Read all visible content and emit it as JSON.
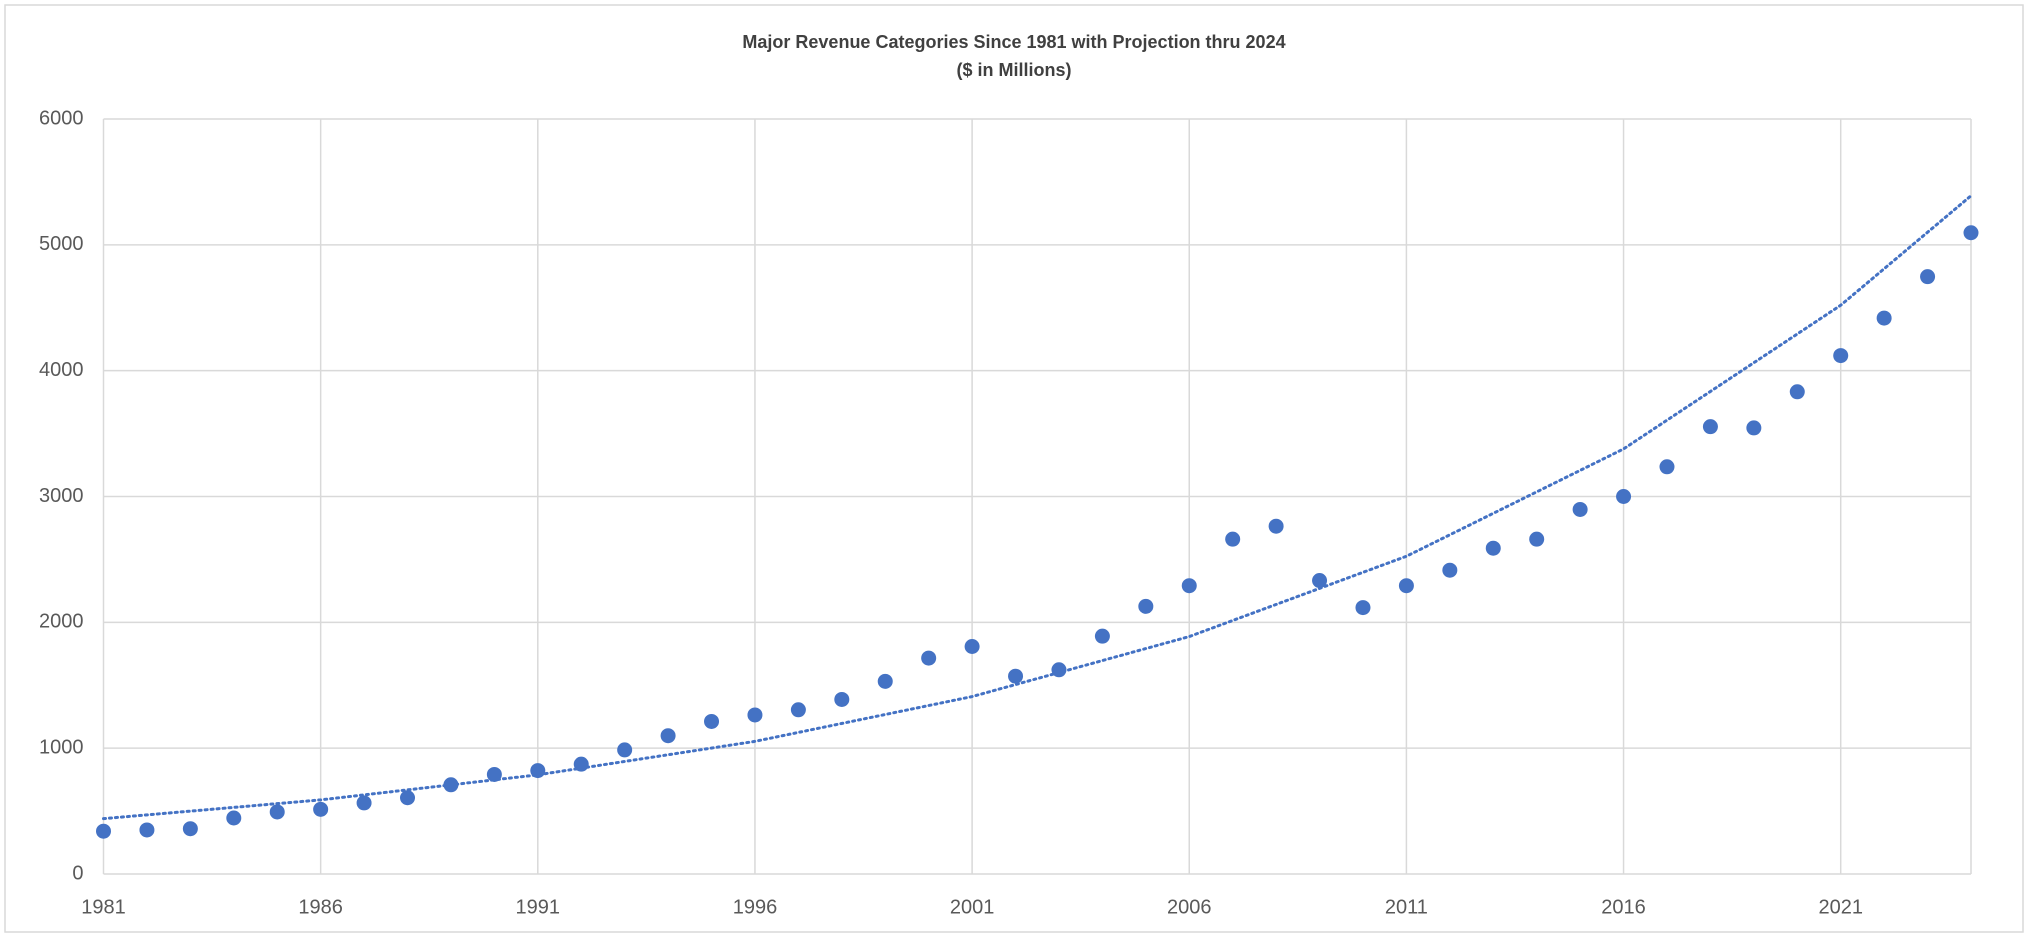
{
  "chart_data": {
    "type": "scatter",
    "title": "Major Revenue Categories Since 1981 with Projection thru 2024",
    "subtitle": "($ in Millions)",
    "x": [
      1981,
      1982,
      1983,
      1984,
      1985,
      1986,
      1987,
      1988,
      1989,
      1990,
      1991,
      1992,
      1993,
      1994,
      1995,
      1996,
      1997,
      1998,
      1999,
      2000,
      2001,
      2002,
      2003,
      2004,
      2005,
      2006,
      2007,
      2008,
      2009,
      2010,
      2011,
      2012,
      2013,
      2014,
      2015,
      2016,
      2017,
      2018,
      2019,
      2020,
      2021,
      2022,
      2023,
      2024
    ],
    "series": [
      {
        "color": "#4472c4",
        "values": [
          340,
          350,
          360,
          445,
          493,
          514,
          565,
          606,
          709,
          791,
          822,
          873,
          986,
          1099,
          1212,
          1264,
          1305,
          1387,
          1531,
          1716,
          1808,
          1572,
          1623,
          1890,
          2127,
          2291,
          2661,
          2764,
          2332,
          2117,
          2291,
          2414,
          2589,
          2661,
          2897,
          3000,
          3236,
          3555,
          3545,
          3832,
          4120,
          4418,
          4747,
          5096
        ]
      }
    ],
    "trendline": {
      "color": "#4472c4",
      "style": "dotted",
      "x": [
        1981,
        1986,
        1991,
        1996,
        2001,
        2006,
        2011,
        2016,
        2021,
        2024
      ],
      "values": [
        440,
        589,
        788,
        1054,
        1410,
        1887,
        2525,
        3378,
        4520,
        5390
      ]
    },
    "xlim": [
      1981,
      2024
    ],
    "xticks": [
      1981,
      1986,
      1991,
      1996,
      2001,
      2006,
      2011,
      2016,
      2021
    ],
    "ylim": [
      0,
      6000
    ],
    "yticks": [
      0,
      1000,
      2000,
      3000,
      4000,
      5000,
      6000
    ],
    "grid": true
  }
}
